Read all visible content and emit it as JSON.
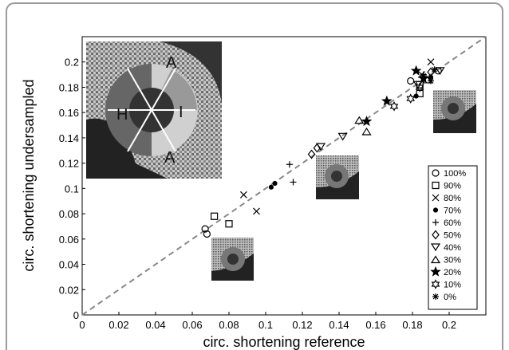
{
  "chart_data": {
    "type": "scatter",
    "xlabel": "circ. shortening reference",
    "ylabel": "circ. shortening undersampled",
    "xlim": [
      0,
      0.22
    ],
    "ylim": [
      0,
      0.22
    ],
    "xticks": [
      0,
      0.02,
      0.04,
      0.06,
      0.08,
      0.1,
      0.12,
      0.14,
      0.16,
      0.18,
      0.2
    ],
    "yticks": [
      0,
      0.02,
      0.04,
      0.06,
      0.08,
      0.1,
      0.12,
      0.14,
      0.16,
      0.18,
      0.2
    ],
    "reference_line": {
      "color": "#888888",
      "x": [
        0,
        0.22
      ],
      "values": [
        0,
        0.22
      ]
    },
    "inset_labels": [
      "A",
      "H",
      "I",
      "A"
    ],
    "legend": "right",
    "series": [
      {
        "name": "100%",
        "marker": "circle",
        "color": "#000000",
        "x": [
          0.067,
          0.068,
          0.179,
          0.194
        ],
        "values": [
          0.068,
          0.064,
          0.185,
          0.193
        ]
      },
      {
        "name": "90%",
        "marker": "square",
        "color": "#000000",
        "x": [
          0.072,
          0.08,
          0.184,
          0.184
        ],
        "values": [
          0.078,
          0.072,
          0.182,
          0.175
        ]
      },
      {
        "name": "80%",
        "marker": "x",
        "color": "#000000",
        "x": [
          0.088,
          0.095,
          0.19,
          0.185
        ],
        "values": [
          0.095,
          0.082,
          0.2,
          0.19
        ]
      },
      {
        "name": "70%",
        "marker": "dot",
        "color": "#000000",
        "x": [
          0.103,
          0.105,
          0.182,
          0.19
        ],
        "values": [
          0.101,
          0.104,
          0.173,
          0.188
        ]
      },
      {
        "name": "60%",
        "marker": "plus",
        "color": "#000000",
        "x": [
          0.113,
          0.115,
          0.186
        ],
        "values": [
          0.119,
          0.105,
          0.19
        ]
      },
      {
        "name": "50%",
        "marker": "diamond",
        "color": "#000000",
        "x": [
          0.125,
          0.128,
          0.19
        ],
        "values": [
          0.127,
          0.132,
          0.192
        ]
      },
      {
        "name": "40%",
        "marker": "tridown",
        "color": "#000000",
        "x": [
          0.13,
          0.142,
          0.183,
          0.195
        ],
        "values": [
          0.133,
          0.141,
          0.182,
          0.193
        ]
      },
      {
        "name": "30%",
        "marker": "triup",
        "color": "#000000",
        "x": [
          0.151,
          0.155,
          0.188
        ],
        "values": [
          0.154,
          0.145,
          0.186
        ]
      },
      {
        "name": "20%",
        "marker": "star",
        "color": "#000000",
        "x": [
          0.155,
          0.166,
          0.182,
          0.186
        ],
        "values": [
          0.153,
          0.169,
          0.193,
          0.187
        ]
      },
      {
        "name": "10%",
        "marker": "hexagram",
        "color": "#000000",
        "x": [
          0.17,
          0.179,
          0.184
        ],
        "values": [
          0.165,
          0.171,
          0.18
        ]
      },
      {
        "name": "0%",
        "marker": "asterisk",
        "color": "#000000",
        "x": [
          0.186,
          0.19,
          0.192
        ],
        "values": [
          0.189,
          0.185,
          0.194
        ]
      }
    ]
  }
}
